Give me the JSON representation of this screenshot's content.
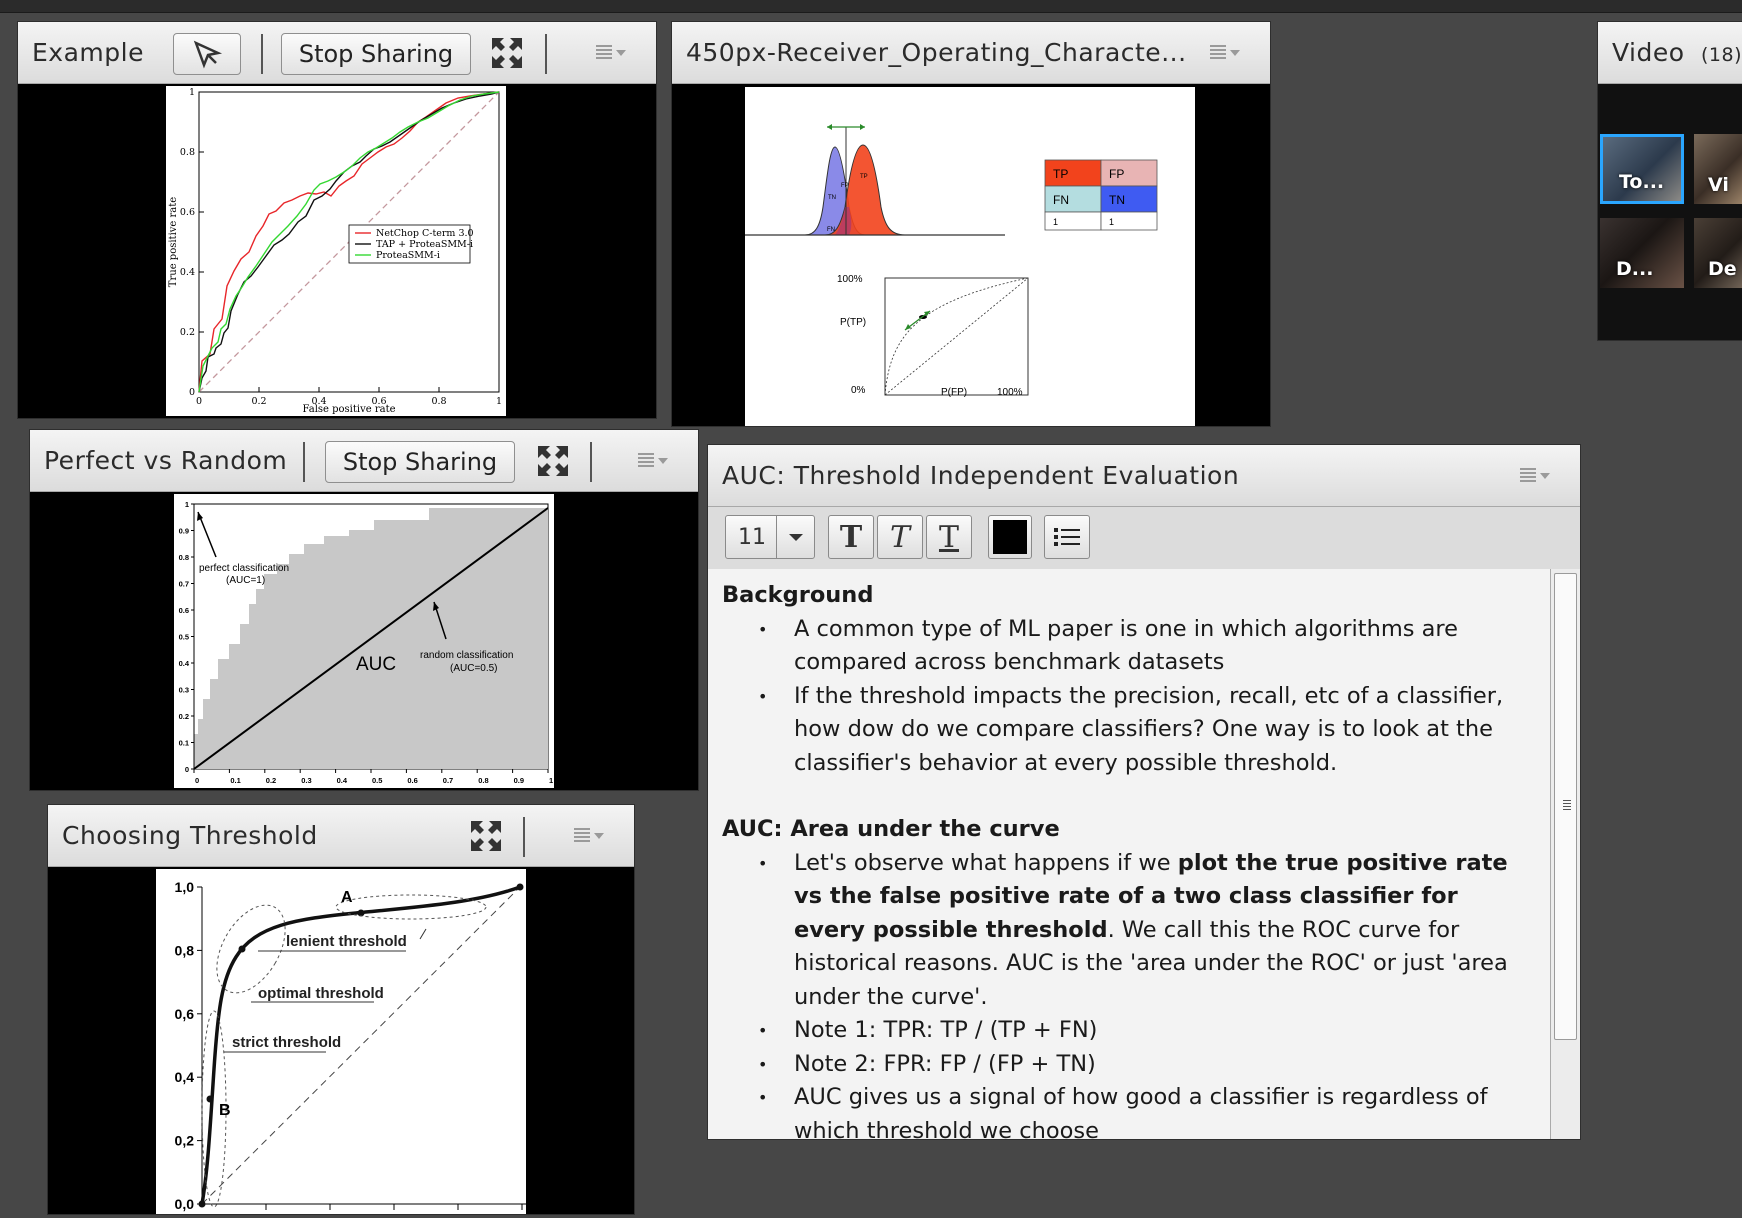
{
  "pods": {
    "example": {
      "title": "Example",
      "stop_sharing": "Stop Sharing"
    },
    "roc_image": {
      "title": "450px-Receiver_Operating_Characte..."
    },
    "perfect_random": {
      "title": "Perfect vs Random",
      "stop_sharing": "Stop Sharing"
    },
    "choosing": {
      "title": "Choosing Threshold"
    },
    "video": {
      "title": "Video",
      "count": "(18)",
      "participants": [
        {
          "name": "To...",
          "active": true
        },
        {
          "name": "Vi",
          "active": false
        },
        {
          "name": "D...",
          "active": false
        },
        {
          "name": "De",
          "active": false
        }
      ]
    },
    "note": {
      "title": "AUC: Threshold Independent Evaluation",
      "font_size": "11",
      "text_color": "#000000",
      "sections": [
        {
          "heading": "Background",
          "bullets": [
            [
              {
                "t": "A common type of ML paper is one in which algorithms are compared across benchmark datasets",
                "b": false
              }
            ],
            [
              {
                "t": "If the threshold impacts the precision, recall, etc of a classifier, how dow do we compare classifiers?  One way is to look at the classifier's behavior at every possible threshold.",
                "b": false
              }
            ]
          ]
        },
        {
          "heading": "AUC: Area under the curve",
          "bullets": [
            [
              {
                "t": "Let's observe what happens if we ",
                "b": false
              },
              {
                "t": "plot the true positive rate vs the false positive rate of a two class classifier for every possible threshold",
                "b": true
              },
              {
                "t": ".  We call this the ROC curve for historical reasons.  AUC is the 'area under the ROC' or just 'area under the curve'.",
                "b": false
              }
            ],
            [
              {
                "t": "Note 1: TPR: TP / (TP + FN)",
                "b": false
              }
            ],
            [
              {
                "t": "Note 2: FPR: FP / (FP + TN)",
                "b": false
              }
            ],
            [
              {
                "t": "AUC gives us a signal of how good a classifier is regardless of which threshold we choose",
                "b": false
              }
            ]
          ]
        }
      ]
    }
  },
  "chart_example": {
    "type": "line",
    "xlabel": "False positive rate",
    "ylabel": "True positive rate",
    "xticks": [
      "0",
      "0.2",
      "0.4",
      "0.6",
      "0.8",
      "1"
    ],
    "yticks": [
      "0",
      "0.2",
      "0.4",
      "0.6",
      "0.8",
      "1"
    ],
    "legend": [
      "NetChop C-term 3.0",
      "TAP + ProteaSMM-i",
      "ProteaSMM-i"
    ],
    "colors": [
      "#e8262a",
      "#111111",
      "#34d832"
    ]
  },
  "chart_roc_diagram": {
    "matrix": [
      [
        "TP",
        "FP"
      ],
      [
        "FN",
        "TN"
      ],
      [
        "1",
        "1"
      ]
    ],
    "matrix_colors": [
      "#f2431c",
      "#e8b4b4",
      "#b4dde0",
      "#3f5bf2"
    ],
    "dist_labels": [
      "TN",
      "FP",
      "TP",
      "FN"
    ],
    "y_top": "100%",
    "y_bottom": "0%",
    "y_label": "P(TP)",
    "x_label": "P(FP)",
    "x_right": "100%"
  },
  "chart_perfect_random": {
    "type": "area",
    "xticks": [
      "0",
      "0.1",
      "0.2",
      "0.3",
      "0.4",
      "0.5",
      "0.6",
      "0.7",
      "0.8",
      "0.9",
      "1"
    ],
    "yticks": [
      "0",
      "0.1",
      "0.2",
      "0.3",
      "0.4",
      "0.5",
      "0.6",
      "0.7",
      "0.8",
      "0.9",
      "1"
    ],
    "annotations": {
      "perfect": "perfect classification",
      "perfect_sub": "(AUC=1)",
      "random": "random classification",
      "random_sub": "(AUC=0.5)",
      "area": "AUC"
    }
  },
  "chart_choosing": {
    "type": "line",
    "yticks": [
      "0,0",
      "0,2",
      "0,4",
      "0,6",
      "0,8",
      "1,0"
    ],
    "labels": {
      "a": "A",
      "b": "B",
      "lenient": "lenient threshold",
      "optimal": "optimal threshold",
      "strict": "strict threshold"
    }
  }
}
